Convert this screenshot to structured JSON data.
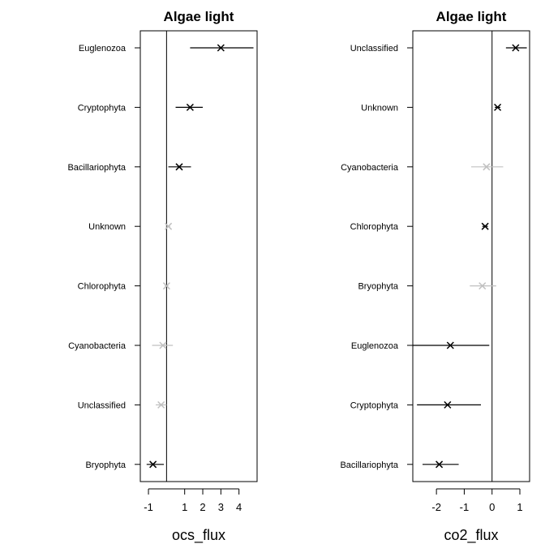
{
  "chart_data": [
    {
      "type": "forest",
      "title": "Algae light",
      "xlabel": "ocs_flux",
      "ylabel": "",
      "xlim": [
        -1.45,
        5.0
      ],
      "xticks": [
        -1,
        1,
        2,
        3,
        4
      ],
      "zero_line": 0,
      "grid": false,
      "points": [
        {
          "label": "Euglenozoa",
          "est": 3.0,
          "lo": 1.3,
          "hi": 4.8,
          "significant": true
        },
        {
          "label": "Cryptophyta",
          "est": 1.3,
          "lo": 0.5,
          "hi": 2.0,
          "significant": true
        },
        {
          "label": "Bacillariophyta",
          "est": 0.7,
          "lo": 0.1,
          "hi": 1.35,
          "significant": true
        },
        {
          "label": "Unknown",
          "est": 0.1,
          "lo": 0.0,
          "hi": 0.2,
          "significant": false
        },
        {
          "label": "Chlorophyta",
          "est": 0.0,
          "lo": -0.1,
          "hi": 0.1,
          "significant": false
        },
        {
          "label": "Cyanobacteria",
          "est": -0.2,
          "lo": -0.8,
          "hi": 0.35,
          "significant": false
        },
        {
          "label": "Unclassified",
          "est": -0.3,
          "lo": -0.6,
          "hi": 0.0,
          "significant": false
        },
        {
          "label": "Bryophyta",
          "est": -0.75,
          "lo": -1.1,
          "hi": -0.15,
          "significant": true
        }
      ]
    },
    {
      "type": "forest",
      "title": "Algae light",
      "xlabel": "co2_flux",
      "ylabel": "",
      "xlim": [
        -2.85,
        1.35
      ],
      "xticks": [
        -2,
        -1,
        0,
        1
      ],
      "zero_line": 0,
      "grid": false,
      "points": [
        {
          "label": "Unclassified",
          "est": 0.85,
          "lo": 0.5,
          "hi": 1.25,
          "significant": true
        },
        {
          "label": "Unknown",
          "est": 0.2,
          "lo": 0.1,
          "hi": 0.3,
          "significant": true
        },
        {
          "label": "Cyanobacteria",
          "est": -0.2,
          "lo": -0.75,
          "hi": 0.4,
          "significant": false
        },
        {
          "label": "Chlorophyta",
          "est": -0.25,
          "lo": -0.35,
          "hi": -0.15,
          "significant": true
        },
        {
          "label": "Bryophyta",
          "est": -0.35,
          "lo": -0.8,
          "hi": 0.15,
          "significant": false
        },
        {
          "label": "Euglenozoa",
          "est": -1.5,
          "lo": -2.85,
          "hi": -0.1,
          "significant": true
        },
        {
          "label": "Cryptophyta",
          "est": -1.6,
          "lo": -2.7,
          "hi": -0.4,
          "significant": true
        },
        {
          "label": "Bacillariophyta",
          "est": -1.9,
          "lo": -2.5,
          "hi": -1.2,
          "significant": true
        }
      ]
    }
  ],
  "colors": {
    "significant": "#000000",
    "not_significant": "#c0c0c0",
    "frame": "#000000"
  }
}
